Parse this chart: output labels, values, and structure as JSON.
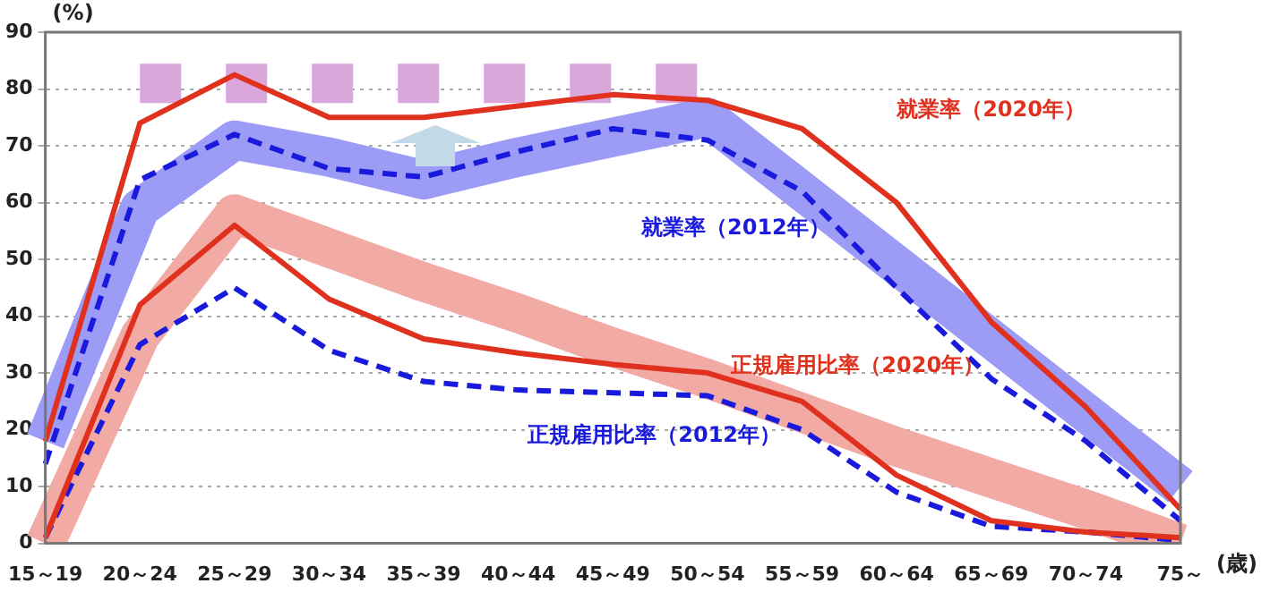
{
  "chart_data": {
    "type": "line",
    "ylabel": "(%)",
    "xlabel": "(歳)",
    "categories": [
      "15～19",
      "20～24",
      "25～29",
      "30～34",
      "35～39",
      "40～44",
      "45～49",
      "50～54",
      "55～59",
      "60～64",
      "65～69",
      "70～74",
      "75～"
    ],
    "series": [
      {
        "color": "#9c9cf7",
        "line_style": "solid",
        "values": [
          18,
          59,
          71,
          68,
          64,
          68,
          71.5,
          75,
          62,
          49,
          36,
          23,
          10
        ]
      },
      {
        "color": "#f2aaa4",
        "line_style": "solid",
        "values": [
          0,
          36.5,
          58,
          52,
          46,
          40.5,
          34.5,
          29,
          23,
          17,
          11.5,
          6,
          0
        ]
      },
      {
        "color": "#dba6db",
        "line_style": "dashed",
        "values": [
          null,
          81,
          81,
          81,
          81,
          81,
          81,
          81,
          null,
          null,
          null,
          null,
          null
        ]
      },
      {
        "name": "就業率（2020年）",
        "color": "#e0301e",
        "line_style": "solid",
        "values": [
          18,
          74,
          82.5,
          75,
          75,
          77,
          79,
          78,
          73,
          60,
          39,
          24,
          6
        ]
      },
      {
        "name": "就業率（2012年）",
        "color": "#1a1adc",
        "line_style": "dashed",
        "values": [
          14,
          64,
          72,
          66,
          64.5,
          69,
          73,
          71,
          62,
          45,
          29,
          18,
          4
        ]
      },
      {
        "name": "正規雇用比率（2020年）",
        "color": "#e0301e",
        "line_style": "solid",
        "values": [
          1,
          42,
          56,
          43,
          36,
          33.5,
          31.5,
          30,
          25,
          12,
          4,
          2,
          1
        ]
      },
      {
        "name": "正規雇用比率（2012年）",
        "color": "#1a1adc",
        "line_style": "dashed",
        "values": [
          1,
          35,
          45,
          34,
          28.5,
          27,
          26.5,
          26,
          20,
          9,
          3,
          2,
          0.5
        ]
      }
    ],
    "ylim": [
      0,
      90
    ],
    "yticks": [
      0,
      10,
      20,
      30,
      40,
      50,
      60,
      70,
      80,
      90
    ],
    "grid": "y",
    "legend": false,
    "marker": "none"
  }
}
